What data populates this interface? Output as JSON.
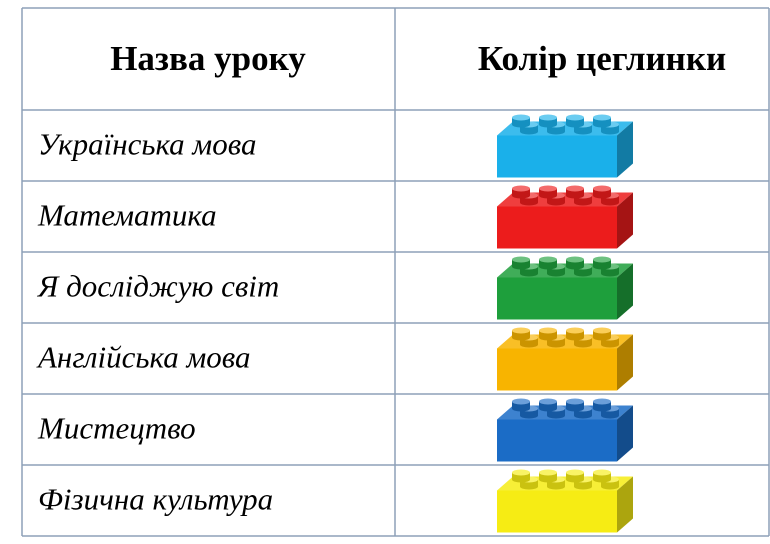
{
  "table": {
    "header": [
      "Назва уроку",
      "Колір цеглинки"
    ],
    "rows": [
      {
        "subject": "Українська мова",
        "brick_color": "#1ab0ea"
      },
      {
        "subject": "Математика",
        "brick_color": "#ec1c1c"
      },
      {
        "subject": "Я досліджую світ",
        "brick_color": "#1e9f3c"
      },
      {
        "subject": "Англійська мова",
        "brick_color": "#f8b400"
      },
      {
        "subject": "Мистецтво",
        "brick_color": "#1b6cc6"
      },
      {
        "subject": "Фізична культура",
        "brick_color": "#f6ec14"
      }
    ]
  }
}
